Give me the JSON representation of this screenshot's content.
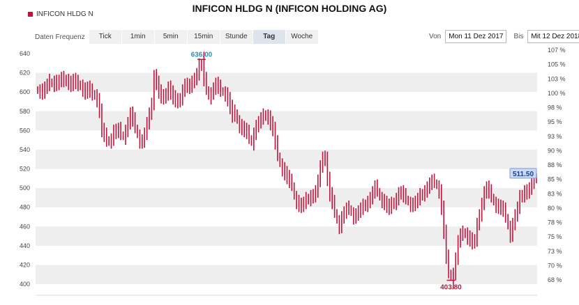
{
  "title": "INFICON HLDG N (INFICON HOLDING AG)",
  "legend": {
    "label": "INFICON HLDG N",
    "color": "#c0143c"
  },
  "frequency": {
    "label": "Daten Frequenz",
    "options": [
      "Tick",
      "1min",
      "5min",
      "15min",
      "Stunde",
      "Tag",
      "Woche"
    ],
    "active": "Tag"
  },
  "date_range": {
    "from_label": "Von",
    "from_value": "Mon 11 Dez 2017",
    "to_label": "Bis",
    "to_value": "Mit 12 Dez 2018"
  },
  "colors": {
    "series": "#c0143c",
    "band": "#eeeeee",
    "max_label": "#2d8fb5",
    "last_box": "#c9daf8"
  },
  "chart_data": {
    "type": "line",
    "style": "hlc-bars",
    "ylim": [
      400,
      640
    ],
    "yticks": [
      400,
      420,
      440,
      460,
      480,
      500,
      520,
      540,
      560,
      580,
      600,
      620,
      640
    ],
    "y2ticks": [
      "68 %",
      "70 %",
      "73 %",
      "75 %",
      "78 %",
      "80 %",
      "83 %",
      "85 %",
      "88 %",
      "90 %",
      "93 %",
      "95 %",
      "98 %",
      "100 %",
      "103 %",
      "105 %",
      "107 %"
    ],
    "grid": "alternating bands",
    "annotations": {
      "max": "636.00",
      "min": "403.80",
      "last": "511.50"
    },
    "series": [
      {
        "values": [
          602,
          603,
          600,
          604,
          606,
          610,
          609,
          612,
          609,
          611,
          613,
          610,
          614,
          611,
          608,
          612,
          609,
          606,
          608,
          604,
          600,
          604,
          600,
          596,
          598,
          593,
          581,
          560,
          554,
          548,
          550,
          552,
          560,
          558,
          560,
          555,
          554,
          561,
          568,
          577,
          570,
          562,
          556,
          550,
          549,
          556,
          566,
          575,
          590,
          618,
          610,
          600,
          594,
          592,
          600,
          606,
          600,
          594,
          590,
          588,
          595,
          603,
          608,
          606,
          604,
          608,
          616,
          620,
          629,
          634,
          612,
          602,
          596,
          600,
          604,
          608,
          604,
          600,
          601,
          599,
          593,
          584,
          574,
          578,
          571,
          566,
          563,
          560,
          557,
          551,
          548,
          558,
          565,
          568,
          571,
          574,
          577,
          575,
          568,
          561,
          546,
          533,
          526,
          521,
          516,
          511,
          506,
          502,
          492,
          487,
          483,
          481,
          483,
          487,
          490,
          493,
          492,
          496,
          506,
          520,
          534,
          532,
          510,
          493,
          484,
          474,
          467,
          461,
          470,
          474,
          477,
          478,
          475,
          471,
          473,
          475,
          477,
          480,
          484,
          487,
          490,
          495,
          500,
          496,
          491,
          488,
          485,
          481,
          478,
          482,
          486,
          490,
          495,
          495,
          491,
          488,
          486,
          484,
          483,
          485,
          487,
          491,
          495,
          498,
          501,
          504,
          506,
          505,
          503,
          498,
          480,
          454,
          427,
          411,
          404,
          412,
          427,
          444,
          450,
          452,
          454,
          450,
          447,
          443,
          444,
          460,
          474,
          485,
          496,
          500,
          495,
          490,
          486,
          483,
          481,
          479,
          476,
          469,
          461,
          452,
          463,
          471,
          478,
          489,
          494,
          498,
          496,
          499,
          504,
          509,
          511
        ]
      }
    ]
  }
}
